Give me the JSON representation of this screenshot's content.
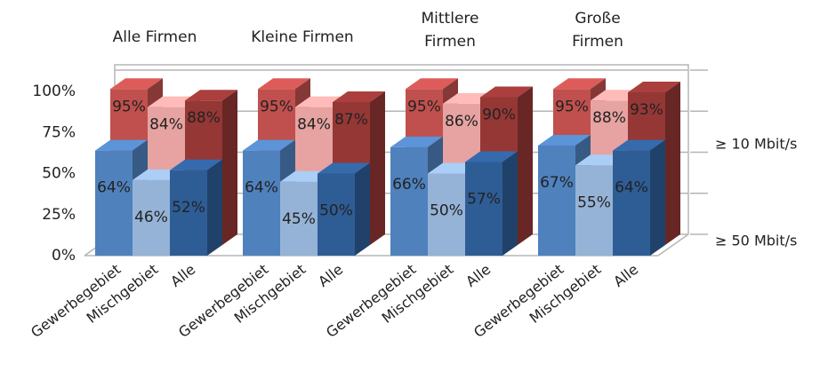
{
  "chart_data": {
    "type": "bar3d",
    "group_titles": [
      [
        "Alle Firmen"
      ],
      [
        "Kleine Firmen"
      ],
      [
        "Mittlere",
        "Firmen"
      ],
      [
        "Große",
        "Firmen"
      ]
    ],
    "categories": [
      "Gewerbegebiet",
      "Mischgebiet",
      "Alle",
      "Gewerbegebiet",
      "Mischgebiet",
      "Alle",
      "Gewerbegebiet",
      "Mischgebiet",
      "Alle",
      "Gewerbegebiet",
      "Mischgebiet",
      "Alle"
    ],
    "series": [
      {
        "name": "≥ 10 Mbit/s",
        "colors": [
          "#c0504d",
          "#e6a3a1",
          "#953735"
        ],
        "values": [
          95,
          84,
          88,
          95,
          84,
          87,
          95,
          86,
          90,
          95,
          88,
          93
        ],
        "value_labels": [
          "95%",
          "84%",
          "88%",
          "95%",
          "84%",
          "87%",
          "95%",
          "86%",
          "90%",
          "95%",
          "88%",
          "93%"
        ]
      },
      {
        "name": "≥ 50 Mbit/s",
        "colors": [
          "#4f81bd",
          "#95b3d7",
          "#2e5d96"
        ],
        "values": [
          64,
          46,
          52,
          64,
          45,
          50,
          66,
          50,
          57,
          67,
          55,
          64
        ],
        "value_labels": [
          "64%",
          "46%",
          "52%",
          "64%",
          "45%",
          "50%",
          "66%",
          "50%",
          "57%",
          "67%",
          "55%",
          "64%"
        ]
      }
    ],
    "ylim": [
      0,
      100
    ],
    "yticks": [
      {
        "value": 0,
        "label": "0%"
      },
      {
        "value": 25,
        "label": "25%"
      },
      {
        "value": 50,
        "label": "50%"
      },
      {
        "value": 75,
        "label": "75%"
      },
      {
        "value": 100,
        "label": "100%"
      }
    ],
    "grid": true
  }
}
